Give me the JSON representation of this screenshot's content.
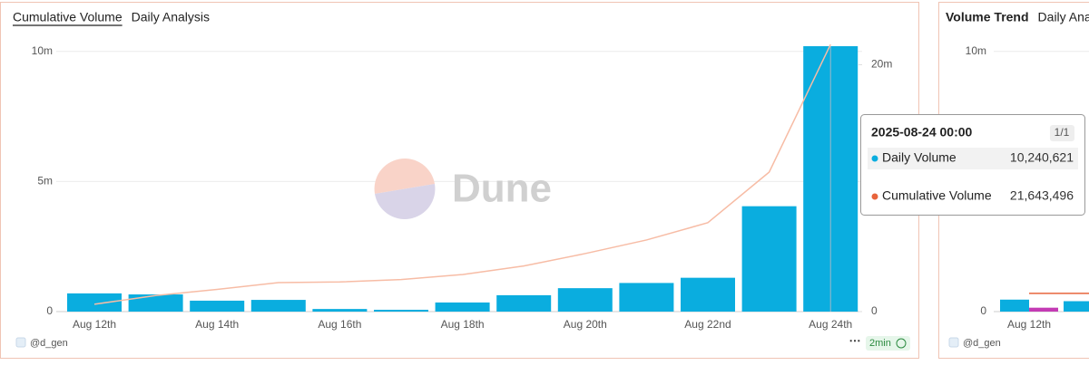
{
  "chart_data": [
    {
      "type": "bar",
      "tabs": [
        "Cumulative Volume",
        "Daily Analysis"
      ],
      "watermark": "Dune",
      "categories": [
        "Aug 12th",
        null,
        "Aug 14th",
        null,
        "Aug 16th",
        null,
        "Aug 18th",
        null,
        "Aug 20th",
        null,
        "Aug 22nd",
        null,
        "Aug 24th"
      ],
      "series": [
        {
          "name": "Daily Volume",
          "color": "#0aaddf",
          "values": [
            700000,
            660000,
            420000,
            450000,
            100000,
            70000,
            350000,
            630000,
            900000,
            1100000,
            1300000,
            4050000,
            10240621
          ],
          "value_labels": [
            null,
            null,
            null,
            null,
            null,
            null,
            null,
            null,
            null,
            null,
            null,
            null,
            "10,240,621"
          ]
        },
        {
          "name": "Cumulative Volume",
          "type": "line",
          "axis": "y2",
          "color": "#f7bca5",
          "legend_color": "#e8643c",
          "values": [
            600000,
            1300000,
            1800000,
            2350000,
            2400000,
            2600000,
            3000000,
            3700000,
            4700000,
            5800000,
            7200000,
            11300000,
            21643496
          ],
          "value_labels": [
            null,
            null,
            null,
            null,
            null,
            null,
            null,
            null,
            null,
            null,
            null,
            null,
            "21,643,496"
          ]
        }
      ],
      "ylim": [
        0,
        10200000
      ],
      "yticks": [
        0,
        {
          "value": 5000000,
          "label": "5m"
        },
        {
          "value": 10000000,
          "label": "10m"
        }
      ],
      "y2lim": [
        0,
        21500000
      ],
      "y2ticks": [
        0,
        {
          "value": 20000000,
          "label": "20m"
        }
      ],
      "grid": true,
      "tooltip_title": "2025-08-24 00:00",
      "tooltip_page": "1/1",
      "footer": "@d_gen",
      "refresh": "2min"
    },
    {
      "type": "bar",
      "tabs": [
        "Volume Trend",
        "Daily Analysis"
      ],
      "categories": [
        "Aug 12th",
        null
      ],
      "series": [
        {
          "color": "#0aaddf",
          "values": [
            460000,
            400000
          ]
        },
        {
          "color": "#c43bb4",
          "values": [
            150000,
            null
          ]
        },
        {
          "type": "line",
          "color": "#e8643c",
          "values": [
            700000,
            700000
          ]
        }
      ],
      "ylim": [
        0,
        10200000
      ],
      "yticks": [
        0,
        {
          "value": 10000000,
          "label": "10m"
        }
      ],
      "grid": true,
      "footer": "@d_gen"
    }
  ]
}
